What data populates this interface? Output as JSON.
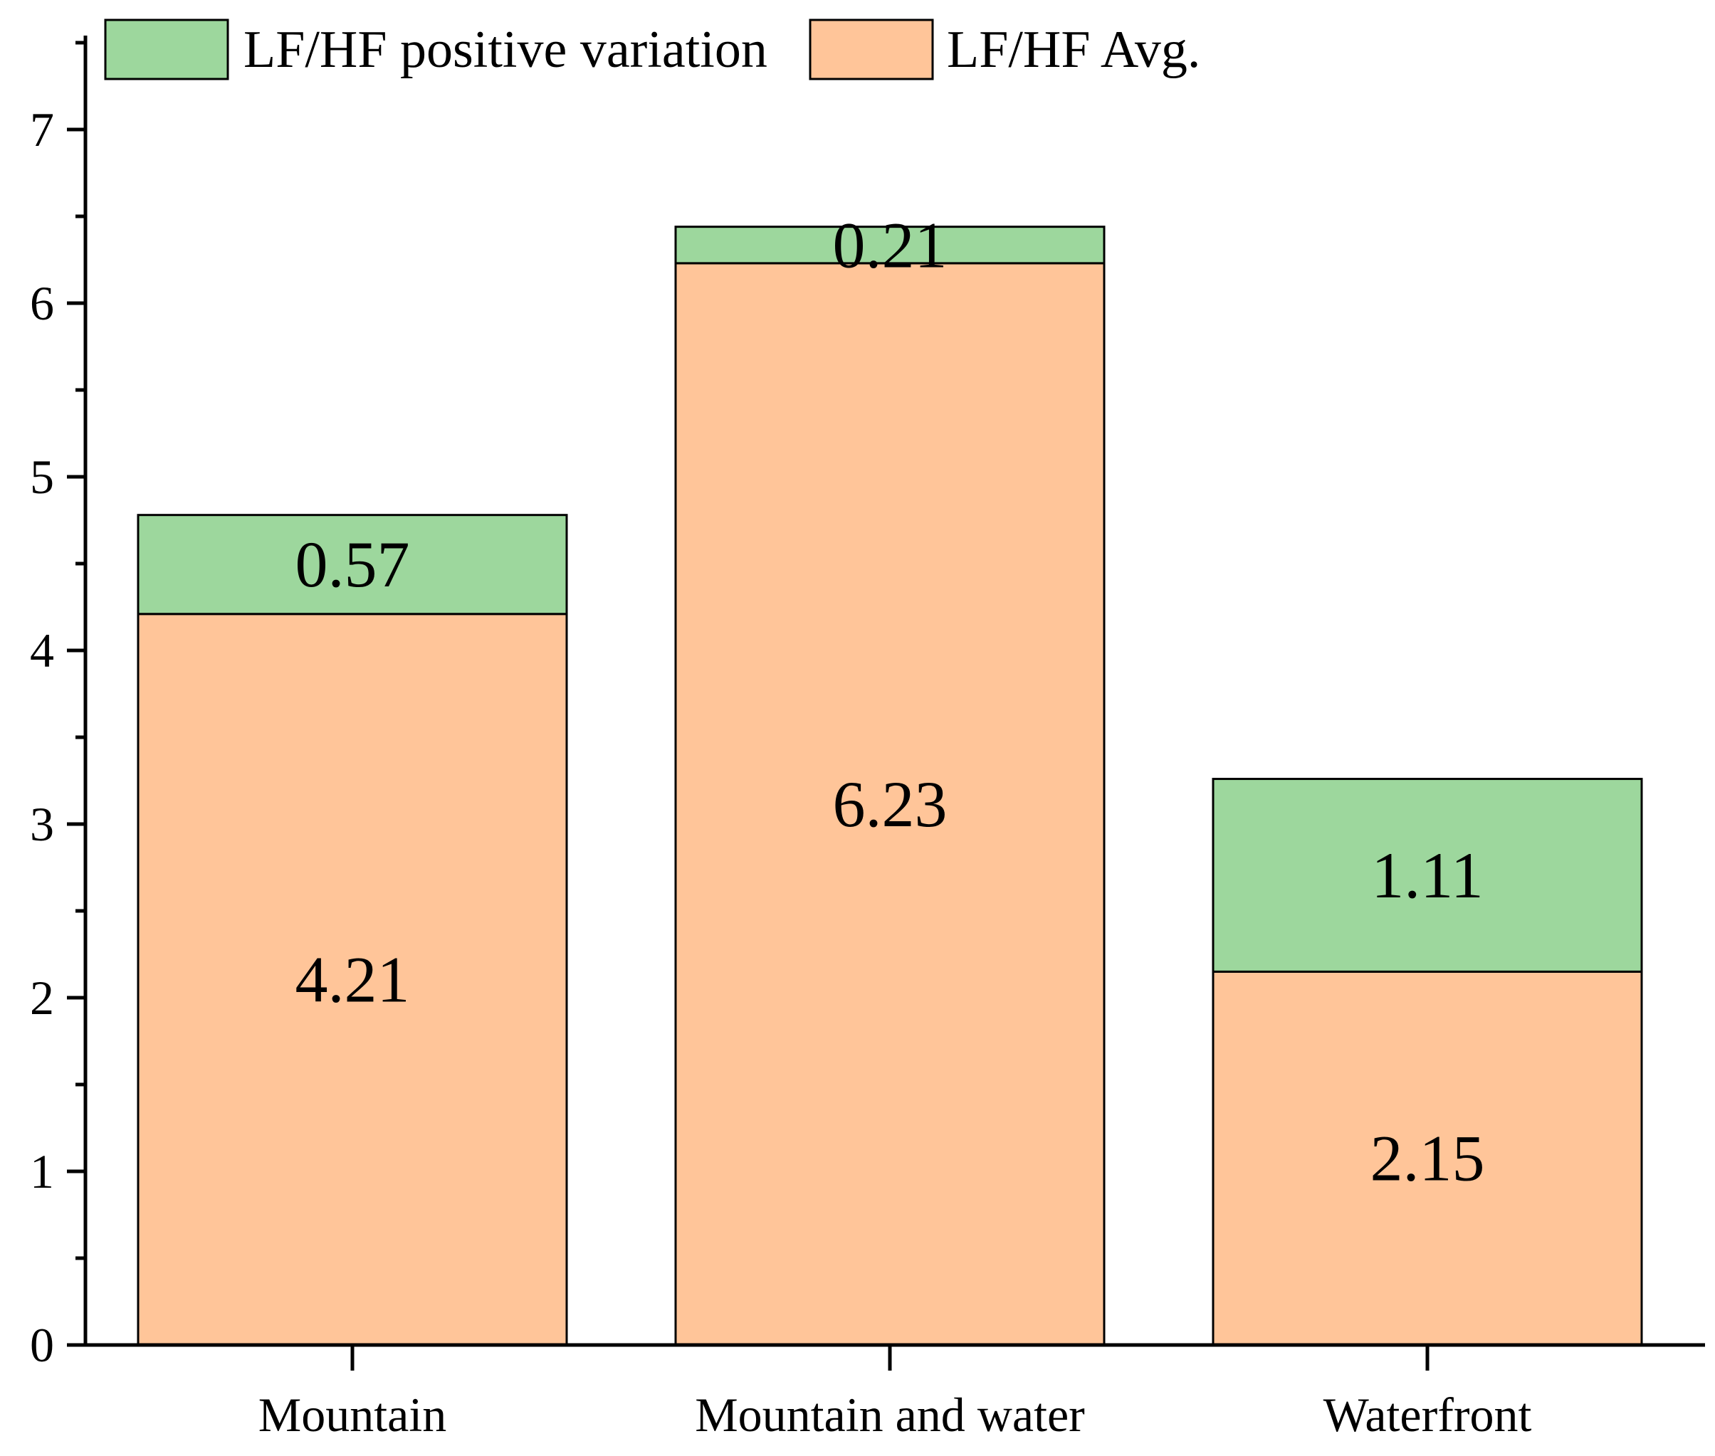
{
  "chart_data": {
    "type": "bar",
    "stacked": true,
    "title": "",
    "xlabel": "",
    "ylabel": "",
    "categories": [
      "Mountain",
      "Mountain and water",
      "Waterfront"
    ],
    "series": [
      {
        "name": "LF/HF Avg.",
        "values": [
          4.21,
          6.23,
          2.15
        ],
        "color": "#FFC599"
      },
      {
        "name": "LF/HF positive variation",
        "values": [
          0.57,
          0.21,
          1.11
        ],
        "color": "#9DD79D"
      }
    ],
    "data_labels": [
      [
        "4.21",
        "6.23",
        "2.15"
      ],
      [
        "0.57",
        "0.21",
        "1.11"
      ]
    ],
    "legend_order": [
      "LF/HF positive variation",
      "LF/HF Avg."
    ],
    "legend_position": "top-left",
    "ylim": [
      0,
      7.5
    ],
    "y_ticks": [
      "0",
      "1",
      "2",
      "3",
      "4",
      "5",
      "6",
      "7"
    ],
    "y_tick_values": [
      0,
      1,
      2,
      3,
      4,
      5,
      6,
      7
    ],
    "grid": false
  }
}
